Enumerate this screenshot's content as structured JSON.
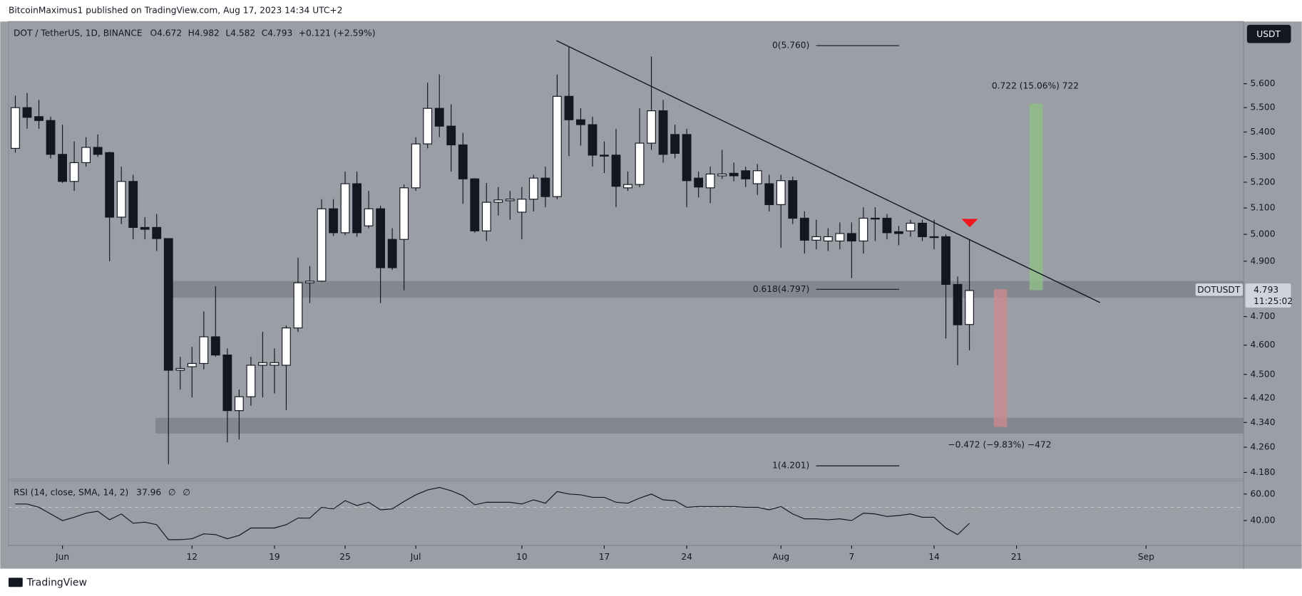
{
  "page": {
    "publisher": "BitcoinMaximus1 published on TradingView.com, Aug 17, 2023 14:34 UTC+2",
    "footer": "TradingView",
    "currency": "USDT",
    "price_tag": "DOTUSDT",
    "countdown": "11:25:02"
  },
  "chart_data": [
    {
      "type": "candlestick",
      "title": "DOT / TetherUS, 1D, BINANCE",
      "ohlc_labels": [
        "O",
        "H",
        "L",
        "C"
      ],
      "change_label": "+0.121 (+2.59%)",
      "log_scale": true,
      "grid": false,
      "up_color": "#ffffff",
      "down_color": "#131722",
      "x": [
        "05-28",
        "05-29",
        "05-30",
        "05-31",
        "06-01",
        "06-02",
        "06-03",
        "06-04",
        "06-05",
        "06-06",
        "06-07",
        "06-08",
        "06-09",
        "06-10",
        "06-11",
        "06-12",
        "06-13",
        "06-14",
        "06-15",
        "06-16",
        "06-17",
        "06-18",
        "06-19",
        "06-20",
        "06-21",
        "06-22",
        "06-23",
        "06-24",
        "06-25",
        "06-26",
        "06-27",
        "06-28",
        "06-29",
        "06-30",
        "07-01",
        "07-02",
        "07-03",
        "07-04",
        "07-05",
        "07-06",
        "07-07",
        "07-08",
        "07-09",
        "07-10",
        "07-11",
        "07-12",
        "07-13",
        "07-14",
        "07-15",
        "07-16",
        "07-17",
        "07-18",
        "07-19",
        "07-20",
        "07-21",
        "07-22",
        "07-23",
        "07-24",
        "07-25",
        "07-26",
        "07-27",
        "07-28",
        "07-29",
        "07-30",
        "07-31",
        "08-01",
        "08-02",
        "08-03",
        "08-04",
        "08-05",
        "08-06",
        "08-07",
        "08-08",
        "08-09",
        "08-10",
        "08-11",
        "08-12",
        "08-13",
        "08-14",
        "08-15",
        "08-16",
        "08-17"
      ],
      "open": [
        5.334,
        5.5,
        5.463,
        5.447,
        5.31,
        5.203,
        5.277,
        5.338,
        5.317,
        5.065,
        5.203,
        5.026,
        5.026,
        4.984,
        4.514,
        4.526,
        4.537,
        4.629,
        4.566,
        4.379,
        4.425,
        4.531,
        4.531,
        4.531,
        4.66,
        4.821,
        4.827,
        5.097,
        5.006,
        5.194,
        5.032,
        5.097,
        4.981,
        4.981,
        5.178,
        5.352,
        5.497,
        5.424,
        5.348,
        5.213,
        5.013,
        5.122,
        5.128,
        5.084,
        5.134,
        5.216,
        5.144,
        5.547,
        5.45,
        5.43,
        5.307,
        5.307,
        5.178,
        5.191,
        5.355,
        5.487,
        5.39,
        5.39,
        5.216,
        5.178,
        5.225,
        5.235,
        5.245,
        5.194,
        5.194,
        5.113,
        5.206,
        5.061,
        4.978,
        4.975,
        4.975,
        5.003,
        4.975,
        5.061,
        5.061,
        5.01,
        5.013,
        5.042,
        4.991,
        4.991,
        4.815,
        4.672
      ],
      "high": [
        5.55,
        5.561,
        5.532,
        5.463,
        5.43,
        5.362,
        5.379,
        5.39,
        5.321,
        5.261,
        5.229,
        5.065,
        5.077,
        4.984,
        4.56,
        4.594,
        4.718,
        4.809,
        4.589,
        4.449,
        4.56,
        4.646,
        4.589,
        4.669,
        4.913,
        4.882,
        5.134,
        5.134,
        5.242,
        5.242,
        5.166,
        5.109,
        5.023,
        5.191,
        5.379,
        5.604,
        5.639,
        5.514,
        5.397,
        5.216,
        5.197,
        5.181,
        5.166,
        5.181,
        5.229,
        5.261,
        5.639,
        5.758,
        5.497,
        5.463,
        5.362,
        5.413,
        5.242,
        5.497,
        5.716,
        5.532,
        5.43,
        5.413,
        5.242,
        5.261,
        5.328,
        5.277,
        5.261,
        5.271,
        5.229,
        5.229,
        5.222,
        5.087,
        5.055,
        5.023,
        5.045,
        5.045,
        5.103,
        5.103,
        5.077,
        5.032,
        5.055,
        5.055,
        5.055,
        5.0,
        4.844,
        4.982
      ],
      "low": [
        5.317,
        5.413,
        5.413,
        5.294,
        5.197,
        5.166,
        5.261,
        5.3,
        4.9,
        5.039,
        4.981,
        4.981,
        4.938,
        4.206,
        4.449,
        4.423,
        4.517,
        4.56,
        4.276,
        4.285,
        4.395,
        4.423,
        4.436,
        4.381,
        4.646,
        4.748,
        4.824,
        4.994,
        4.997,
        4.991,
        5.023,
        4.748,
        4.868,
        4.794,
        5.166,
        5.334,
        5.379,
        5.242,
        5.116,
        5.006,
        4.975,
        5.071,
        5.055,
        4.981,
        5.087,
        5.103,
        5.134,
        5.303,
        5.345,
        5.261,
        5.236,
        5.103,
        5.166,
        5.181,
        5.328,
        5.277,
        5.294,
        5.103,
        5.141,
        5.119,
        5.213,
        5.203,
        5.181,
        5.15,
        5.087,
        4.95,
        5.039,
        4.928,
        4.944,
        4.938,
        4.944,
        4.838,
        4.928,
        4.975,
        4.981,
        4.959,
        4.991,
        4.975,
        4.944,
        4.623,
        4.531,
        4.582
      ],
      "close": [
        5.5,
        5.46,
        5.447,
        5.31,
        5.203,
        5.277,
        5.338,
        5.31,
        5.065,
        5.203,
        5.026,
        5.019,
        4.984,
        4.514,
        4.52,
        4.537,
        4.629,
        4.566,
        4.379,
        4.425,
        4.531,
        4.54,
        4.54,
        4.66,
        4.821,
        4.827,
        5.097,
        5.006,
        5.194,
        5.006,
        5.097,
        4.876,
        4.876,
        5.178,
        5.352,
        5.497,
        5.424,
        5.348,
        5.213,
        5.013,
        5.122,
        5.131,
        5.134,
        5.134,
        5.216,
        5.144,
        5.547,
        5.45,
        5.43,
        5.307,
        5.303,
        5.184,
        5.191,
        5.355,
        5.487,
        5.31,
        5.314,
        5.206,
        5.181,
        5.232,
        5.232,
        5.225,
        5.213,
        5.245,
        5.113,
        5.206,
        5.061,
        4.978,
        4.991,
        4.991,
        5.003,
        4.975,
        5.061,
        5.058,
        5.006,
        5.003,
        5.042,
        4.991,
        4.988,
        4.815,
        4.671,
        4.793
      ],
      "xlim": [
        "05-27",
        "09-09"
      ],
      "xticks": [
        {
          "value": "06-01",
          "label": "Jun"
        },
        {
          "value": "06-12",
          "label": "12"
        },
        {
          "value": "06-19",
          "label": "19"
        },
        {
          "value": "06-25",
          "label": "25"
        },
        {
          "value": "07-01",
          "label": "Jul"
        },
        {
          "value": "07-10",
          "label": "10"
        },
        {
          "value": "07-17",
          "label": "17"
        },
        {
          "value": "07-24",
          "label": "24"
        },
        {
          "value": "08-01",
          "label": "Aug"
        },
        {
          "value": "08-07",
          "label": "7"
        },
        {
          "value": "08-14",
          "label": "14"
        },
        {
          "value": "08-21",
          "label": "21"
        },
        {
          "value": "09-01",
          "label": "Sep"
        }
      ],
      "ylim": [
        4.159,
        5.868
      ],
      "yticks": [
        {
          "value": 5.6,
          "label": "5.600"
        },
        {
          "value": 5.5,
          "label": "5.500"
        },
        {
          "value": 5.4,
          "label": "5.400"
        },
        {
          "value": 5.3,
          "label": "5.300"
        },
        {
          "value": 5.2,
          "label": "5.200"
        },
        {
          "value": 5.1,
          "label": "5.100"
        },
        {
          "value": 5.0,
          "label": "5.000"
        },
        {
          "value": 4.9,
          "label": "4.900"
        },
        {
          "value": 4.7,
          "label": "4.700"
        },
        {
          "value": 4.6,
          "label": "4.600"
        },
        {
          "value": 4.5,
          "label": "4.500"
        },
        {
          "value": 4.42,
          "label": "4.420"
        },
        {
          "value": 4.34,
          "label": "4.340"
        },
        {
          "value": 4.26,
          "label": "4.260"
        },
        {
          "value": 4.18,
          "label": "4.180"
        }
      ],
      "annotations": {
        "fib_0": "0(5.760)",
        "fib_618": "0.618(4.797)",
        "fib_1": "1(4.201)",
        "target_up": "0.722 (15.06%) 722",
        "target_down": "−0.472 (−9.83%) −472"
      }
    },
    {
      "type": "line",
      "title": "RSI (14, close, SMA, 14, 2)",
      "extra_labels": [
        "∅",
        "∅"
      ],
      "color": "#131722",
      "reference_line": 50,
      "x": [
        "05-28",
        "05-29",
        "05-30",
        "05-31",
        "06-01",
        "06-02",
        "06-03",
        "06-04",
        "06-05",
        "06-06",
        "06-07",
        "06-08",
        "06-09",
        "06-10",
        "06-11",
        "06-12",
        "06-13",
        "06-14",
        "06-15",
        "06-16",
        "06-17",
        "06-18",
        "06-19",
        "06-20",
        "06-21",
        "06-22",
        "06-23",
        "06-24",
        "06-25",
        "06-26",
        "06-27",
        "06-28",
        "06-29",
        "06-30",
        "07-01",
        "07-02",
        "07-03",
        "07-04",
        "07-05",
        "07-06",
        "07-07",
        "07-08",
        "07-09",
        "07-10",
        "07-11",
        "07-12",
        "07-13",
        "07-14",
        "07-15",
        "07-16",
        "07-17",
        "07-18",
        "07-19",
        "07-20",
        "07-21",
        "07-22",
        "07-23",
        "07-24",
        "07-25",
        "07-26",
        "07-27",
        "07-28",
        "07-29",
        "07-30",
        "07-31",
        "08-01",
        "08-02",
        "08-03",
        "08-04",
        "08-05",
        "08-06",
        "08-07",
        "08-08",
        "08-09",
        "08-10",
        "08-11",
        "08-12",
        "08-13",
        "08-14",
        "08-15",
        "08-16",
        "08-17"
      ],
      "values": [
        52.5,
        52.5,
        50,
        45,
        40,
        42.5,
        45.6,
        47,
        40.6,
        45,
        38,
        38.8,
        36.9,
        25.6,
        25.6,
        26.3,
        30,
        29.4,
        26.3,
        28.8,
        34.4,
        34.4,
        34.4,
        36.9,
        41.9,
        41.9,
        50,
        48.8,
        55,
        51.3,
        53.8,
        48.1,
        48.8,
        54.4,
        59.4,
        63.1,
        65,
        62.5,
        58.8,
        51.9,
        53.8,
        53.8,
        53.8,
        52.5,
        55.6,
        53.1,
        61.9,
        60,
        59.4,
        57.5,
        57.5,
        53.8,
        53.1,
        56.9,
        60,
        55.6,
        55,
        50,
        50.6,
        50.6,
        50.6,
        50.6,
        50,
        50,
        48.1,
        50.6,
        45,
        41.3,
        41.3,
        40.6,
        41.3,
        40,
        45.6,
        45,
        43.1,
        43.8,
        45,
        42.5,
        42.5,
        34.4,
        29.4,
        37.96
      ],
      "ylim": [
        21.25,
        70
      ],
      "yticks": [
        {
          "value": 60,
          "label": "60.00"
        },
        {
          "value": 40,
          "label": "40.00"
        }
      ]
    }
  ]
}
